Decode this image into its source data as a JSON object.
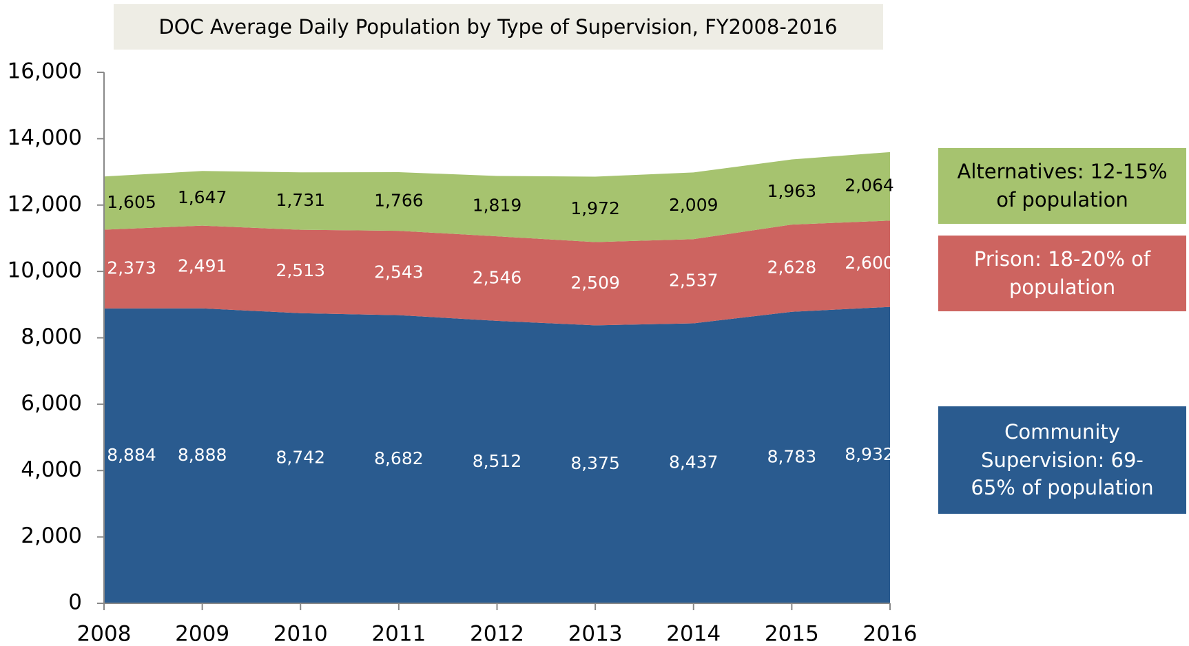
{
  "chart_data": {
    "type": "stacked-area",
    "title": "DOC Average Daily Population by Type of Supervision, FY2008-2016",
    "x": [
      2008,
      2009,
      2010,
      2011,
      2012,
      2013,
      2014,
      2015,
      2016
    ],
    "xlim": [
      2008,
      2016
    ],
    "xticks": [
      2008,
      2009,
      2010,
      2011,
      2012,
      2013,
      2014,
      2015,
      2016
    ],
    "ylim": [
      0,
      16000
    ],
    "yticks": [
      0,
      {
        "value": 2000,
        "label": "2,000"
      },
      {
        "value": 4000,
        "label": "4,000"
      },
      {
        "value": 6000,
        "label": "6,000"
      },
      {
        "value": 8000,
        "label": "8,000"
      },
      {
        "value": 10000,
        "label": "10,000"
      },
      {
        "value": 12000,
        "label": "12,000"
      },
      {
        "value": 14000,
        "label": "14,000"
      },
      {
        "value": 16000,
        "label": "16,000"
      }
    ],
    "grid": false,
    "series": [
      {
        "name": "Community Supervision: 69-65% of population",
        "color": "#2a5b8f",
        "label_color": "#ffffff",
        "values": [
          8884,
          8888,
          8742,
          8682,
          8512,
          8375,
          8437,
          8783,
          8932
        ],
        "value_labels": [
          "8,884",
          "8,888",
          "8,742",
          "8,682",
          "8,512",
          "8,375",
          "8,437",
          "8,783",
          "8,932"
        ]
      },
      {
        "name": "Prison: 18-20% of population",
        "color": "#cd6460",
        "label_color": "#ffffff",
        "values": [
          2373,
          2491,
          2513,
          2543,
          2546,
          2509,
          2537,
          2628,
          2600
        ],
        "value_labels": [
          "2,373",
          "2,491",
          "2,513",
          "2,543",
          "2,546",
          "2,509",
          "2,537",
          "2,628",
          "2,600"
        ]
      },
      {
        "name": "Alternatives: 12-15% of population",
        "color": "#a6c36f",
        "label_color": "#000000",
        "values": [
          1605,
          1647,
          1731,
          1766,
          1819,
          1972,
          2009,
          1963,
          2064
        ],
        "value_labels": [
          "1,605",
          "1,647",
          "1,731",
          "1,766",
          "1,819",
          "1,972",
          "2,009",
          "1,963",
          "2,064"
        ]
      }
    ]
  }
}
